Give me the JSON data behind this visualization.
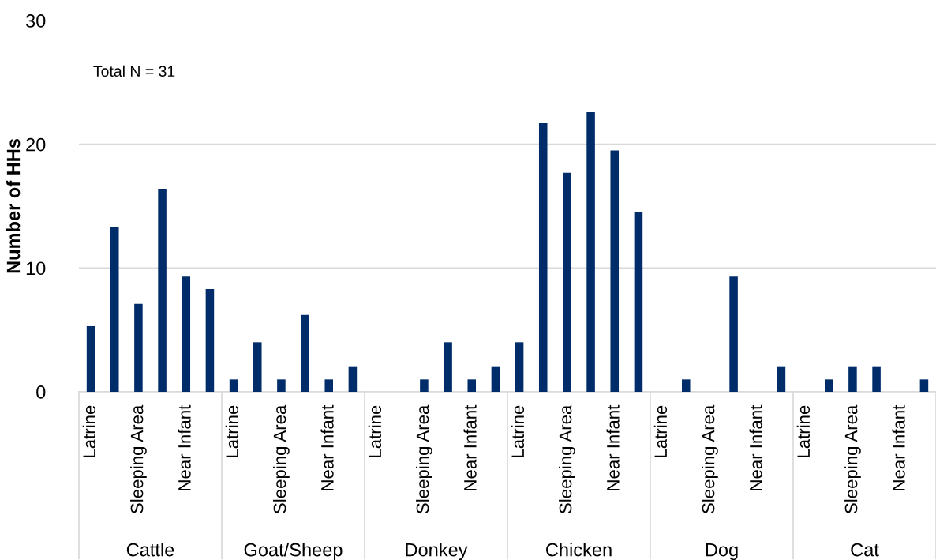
{
  "chart_data": {
    "type": "bar",
    "ylabel": "Number of HHs",
    "annotations": [
      "Total N = 31",
      "Cattle",
      "Goat/Sheep",
      "Donkey",
      "Chicken",
      "Dog",
      "Cat"
    ],
    "categories": [
      "Latrine",
      null,
      "Sleeping Area",
      null,
      "Near Infant",
      null,
      "Latrine",
      null,
      "Sleeping Area",
      null,
      "Near Infant",
      null,
      "Latrine",
      null,
      "Sleeping Area",
      null,
      "Near Infant",
      null,
      "Latrine",
      null,
      "Sleeping Area",
      null,
      "Near Infant",
      null,
      "Latrine",
      null,
      "Sleeping Area",
      null,
      "Near Infant",
      null,
      "Latrine",
      null,
      "Sleeping Area",
      null,
      "Near Infant",
      null
    ],
    "values": [
      5.3,
      13.3,
      7.1,
      16.4,
      9.3,
      8.3,
      1,
      4,
      1,
      6.2,
      1,
      2,
      0,
      0,
      1,
      4,
      1,
      2,
      4,
      21.7,
      17.7,
      22.6,
      19.5,
      14.5,
      0,
      1,
      0,
      9.3,
      0,
      2,
      0,
      1,
      2,
      2,
      0,
      1
    ],
    "color": "#002d6a",
    "ylim": [
      0,
      30
    ],
    "yticks": [
      0,
      10,
      20,
      30
    ],
    "grid": "y",
    "legend": false
  }
}
